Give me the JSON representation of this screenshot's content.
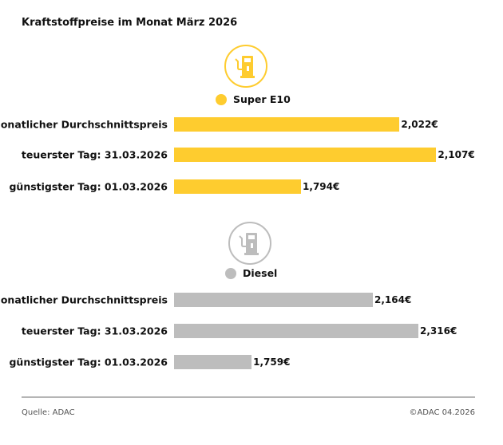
{
  "title": "Kraftstoffpreise im Monat März 2026",
  "chart_data": [
    {
      "type": "bar",
      "orientation": "horizontal",
      "series_name": "Super E10",
      "icon": "fuel-pump-icon",
      "color": "#FECC2F",
      "categories": [
        "Monatlicher Durchschnittspreis",
        "teuerster Tag: 31.03.2026",
        "günstigster Tag: 01.03.2026"
      ],
      "values": [
        2.022,
        2.107,
        1.794
      ],
      "value_labels": [
        "2,022€",
        "2,107€",
        "1,794€"
      ],
      "xlim": [
        1.5,
        2.11
      ],
      "grid": false
    },
    {
      "type": "bar",
      "orientation": "horizontal",
      "series_name": "Diesel",
      "icon": "fuel-pump-icon",
      "color": "#BDBDBD",
      "categories": [
        "Monatlicher Durchschnittspreis",
        "teuerster Tag: 31.03.2026",
        "günstigster Tag: 01.03.2026"
      ],
      "values": [
        2.164,
        2.316,
        1.759
      ],
      "value_labels": [
        "2,164€",
        "2,316€",
        "1,759€"
      ],
      "xlim": [
        1.5,
        2.38
      ],
      "grid": false
    }
  ],
  "footer": {
    "source": "Quelle: ADAC",
    "copyright": "©ADAC 04.2026"
  }
}
